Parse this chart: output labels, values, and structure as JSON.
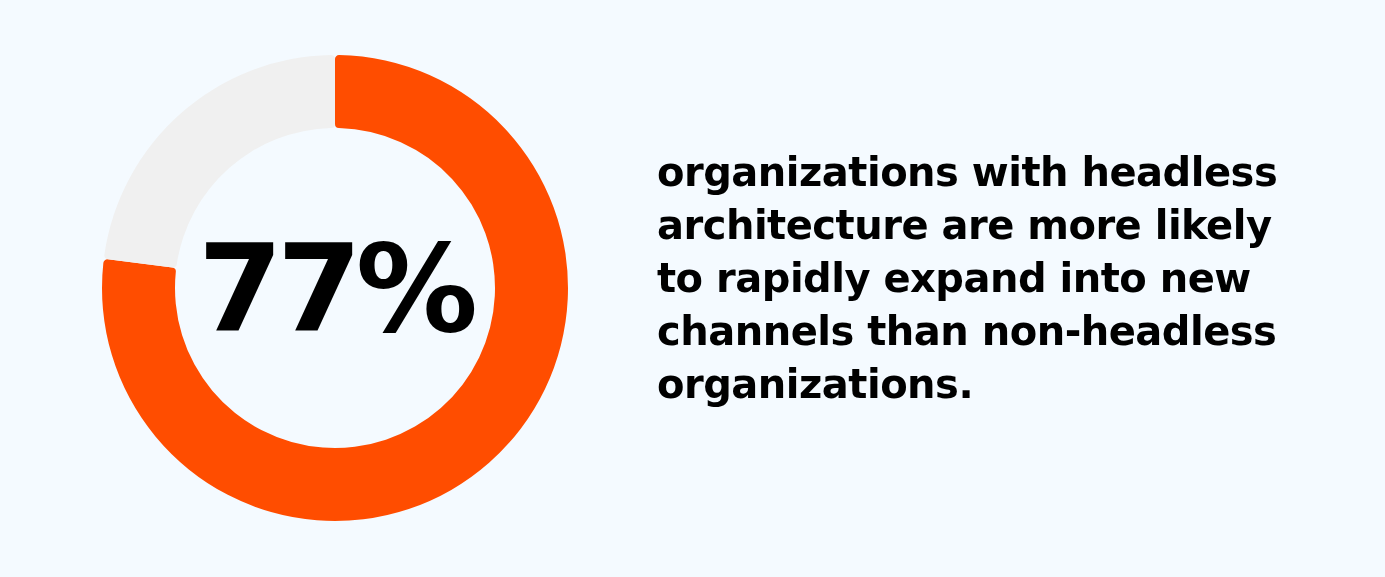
{
  "chart_data": {
    "type": "donut",
    "title": "organizations with headless architecture are more likely to rapidly expand into new channels than non-headless organizations.",
    "categories": [
      null,
      null
    ],
    "values": [
      77,
      23
    ],
    "colors": [
      "#ff4d00",
      "#f0f0f0"
    ],
    "value_labels": [
      "77%",
      null
    ]
  }
}
